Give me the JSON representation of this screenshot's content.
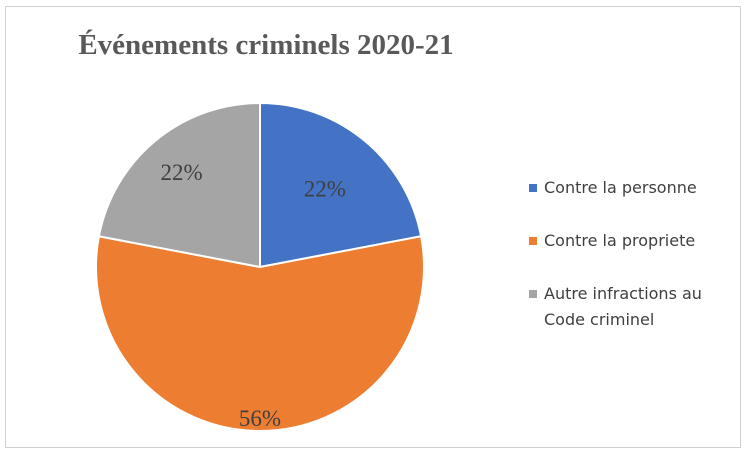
{
  "chart_data": {
    "type": "pie",
    "title": "Événements criminels 2020-21",
    "slices": [
      {
        "name": "Contre la personne",
        "value": 22,
        "label": "22%",
        "color": "#4472C4"
      },
      {
        "name": "Contre la propriete",
        "value": 56,
        "label": "56%",
        "color": "#ED7D31"
      },
      {
        "name": "Autre infractions au\nCode criminel",
        "value": 22,
        "label": "22%",
        "color": "#A5A5A5"
      }
    ],
    "legend_position": "right"
  }
}
